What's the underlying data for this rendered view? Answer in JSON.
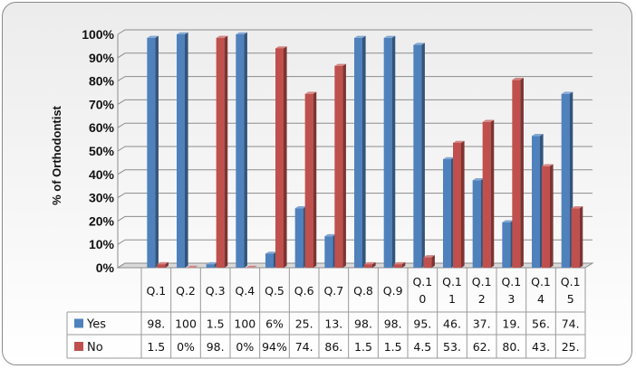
{
  "chart_data": {
    "type": "bar",
    "ylabel": "% of Orthodontist",
    "ylim": [
      0,
      100
    ],
    "y_ticks": [
      "0%",
      "10%",
      "20%",
      "30%",
      "40%",
      "50%",
      "60%",
      "70%",
      "80%",
      "90%",
      "100%"
    ],
    "categories": [
      "Q.1",
      "Q.2",
      "Q.3",
      "Q.4",
      "Q.5",
      "Q.6",
      "Q.7",
      "Q.8",
      "Q.9",
      "Q.10",
      "Q.11",
      "Q.12",
      "Q.13",
      "Q.14",
      "Q.15"
    ],
    "category_labels": [
      [
        "Q.1"
      ],
      [
        "Q.2"
      ],
      [
        "Q.3"
      ],
      [
        "Q.4"
      ],
      [
        "Q.5"
      ],
      [
        "Q.6"
      ],
      [
        "Q.7"
      ],
      [
        "Q.8"
      ],
      [
        "Q.9"
      ],
      [
        "Q.1",
        "0"
      ],
      [
        "Q.1",
        "1"
      ],
      [
        "Q.1",
        "2"
      ],
      [
        "Q.1",
        "3"
      ],
      [
        "Q.1",
        "4"
      ],
      [
        "Q.1",
        "5"
      ]
    ],
    "series": [
      {
        "name": "Yes",
        "color": "#4f81bd",
        "values": [
          98.5,
          100,
          1.5,
          100,
          6,
          25.5,
          13.5,
          98.5,
          98.5,
          95.5,
          46.5,
          37.5,
          19.5,
          56.5,
          74.5
        ],
        "table_values": [
          "98.",
          "100",
          "1.5",
          "100",
          "6%",
          "25.",
          "13.",
          "98.",
          "98.",
          "95.",
          "46.",
          "37.",
          "19.",
          "56.",
          "74."
        ]
      },
      {
        "name": "No",
        "color": "#c0504d",
        "values": [
          1.5,
          0,
          98.5,
          0,
          94,
          74.5,
          86.5,
          1.5,
          1.5,
          4.5,
          53.5,
          62.5,
          80.5,
          43.5,
          25.5
        ],
        "table_values": [
          "1.5",
          "0%",
          "98.",
          "0%",
          "94%",
          "74.",
          "86.",
          "1.5",
          "1.5",
          "4.5",
          "53.",
          "62.",
          "80.",
          "43.",
          "25."
        ]
      }
    ],
    "grid": true,
    "legend": "data-table"
  }
}
